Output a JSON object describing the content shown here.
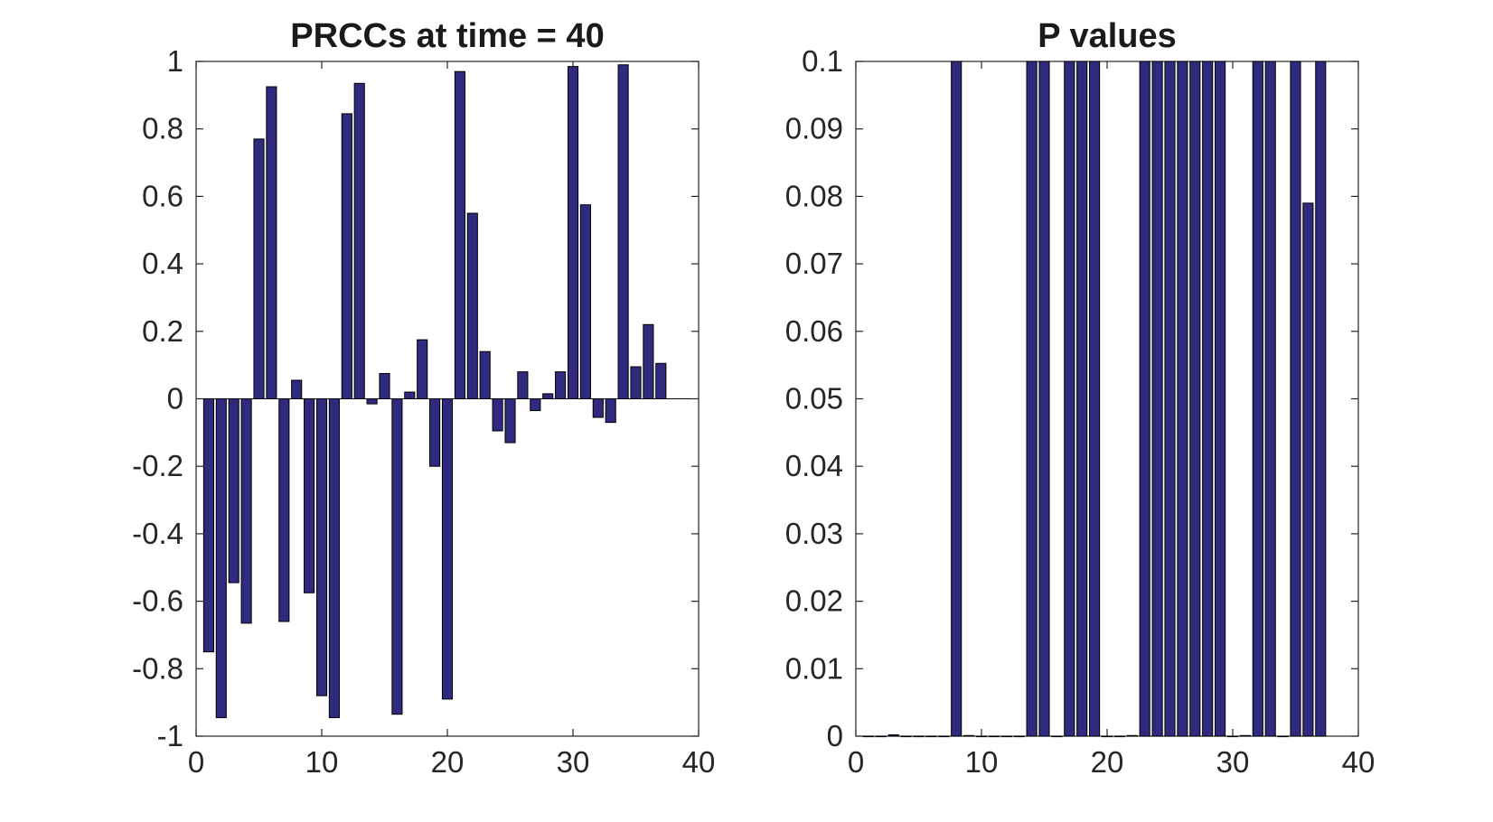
{
  "chart_data": [
    {
      "type": "bar",
      "title": "PRCCs at time = 40",
      "xlabel": "",
      "ylabel": "",
      "xlim": [
        0,
        40
      ],
      "ylim": [
        -1,
        1
      ],
      "xticks": [
        0,
        10,
        20,
        30,
        40
      ],
      "xtick_labels": [
        "0",
        "10",
        "20",
        "30",
        "40"
      ],
      "yticks": [
        1,
        0.8,
        0.6,
        0.4,
        0.2,
        0,
        -0.2,
        -0.4,
        -0.6,
        -0.8,
        -1
      ],
      "ytick_labels": [
        "1",
        "0.8",
        "0.6",
        "0.4",
        "0.2",
        "0",
        "-0.2",
        "-0.4",
        "-0.6",
        "-0.8",
        "-1"
      ],
      "grid": false,
      "bar_color": "#2e2a7e",
      "x": [
        1,
        2,
        3,
        4,
        5,
        6,
        7,
        8,
        9,
        10,
        11,
        12,
        13,
        14,
        15,
        16,
        17,
        18,
        19,
        20,
        21,
        22,
        23,
        24,
        25,
        26,
        27,
        28,
        29,
        30,
        31,
        32,
        33,
        34,
        35,
        36,
        37
      ],
      "values": [
        -0.75,
        -0.945,
        -0.545,
        -0.665,
        0.77,
        0.925,
        -0.66,
        0.055,
        -0.575,
        -0.88,
        -0.945,
        0.845,
        0.935,
        -0.015,
        0.075,
        -0.935,
        0.02,
        0.175,
        -0.2,
        -0.89,
        0.97,
        0.55,
        0.14,
        -0.095,
        -0.13,
        0.08,
        -0.035,
        0.015,
        0.08,
        0.985,
        0.575,
        -0.055,
        -0.07,
        0.99,
        0.095,
        0.22,
        0.105
      ]
    },
    {
      "type": "bar",
      "title": "P values",
      "xlabel": "",
      "ylabel": "",
      "xlim": [
        0,
        40
      ],
      "ylim": [
        0,
        0.1
      ],
      "xticks": [
        0,
        10,
        20,
        30,
        40
      ],
      "xtick_labels": [
        "0",
        "10",
        "20",
        "30",
        "40"
      ],
      "yticks": [
        0.1,
        0.09,
        0.08,
        0.07,
        0.06,
        0.05,
        0.04,
        0.03,
        0.02,
        0.01,
        0
      ],
      "ytick_labels": [
        "0.1",
        "0.09",
        "0.08",
        "0.07",
        "0.06",
        "0.05",
        "0.04",
        "0.03",
        "0.02",
        "0.01",
        "0"
      ],
      "grid": false,
      "bar_color": "#2e2a7e",
      "x": [
        1,
        2,
        3,
        4,
        5,
        6,
        7,
        8,
        9,
        10,
        11,
        12,
        13,
        14,
        15,
        16,
        17,
        18,
        19,
        20,
        21,
        22,
        23,
        24,
        25,
        26,
        27,
        28,
        29,
        30,
        31,
        32,
        33,
        34,
        35,
        36,
        37
      ],
      "values": [
        0,
        0,
        0.0002,
        0,
        0,
        0,
        0,
        0.1,
        0.0001,
        0,
        0,
        0,
        0,
        0.1,
        0.1,
        0,
        0.1,
        0.1,
        0.1,
        0,
        0,
        0.0001,
        0.1,
        0.1,
        0.1,
        0.1,
        0.1,
        0.1,
        0.1,
        0,
        0.0001,
        0.1,
        0.1,
        0,
        0.1,
        0.079,
        0.1
      ]
    }
  ]
}
